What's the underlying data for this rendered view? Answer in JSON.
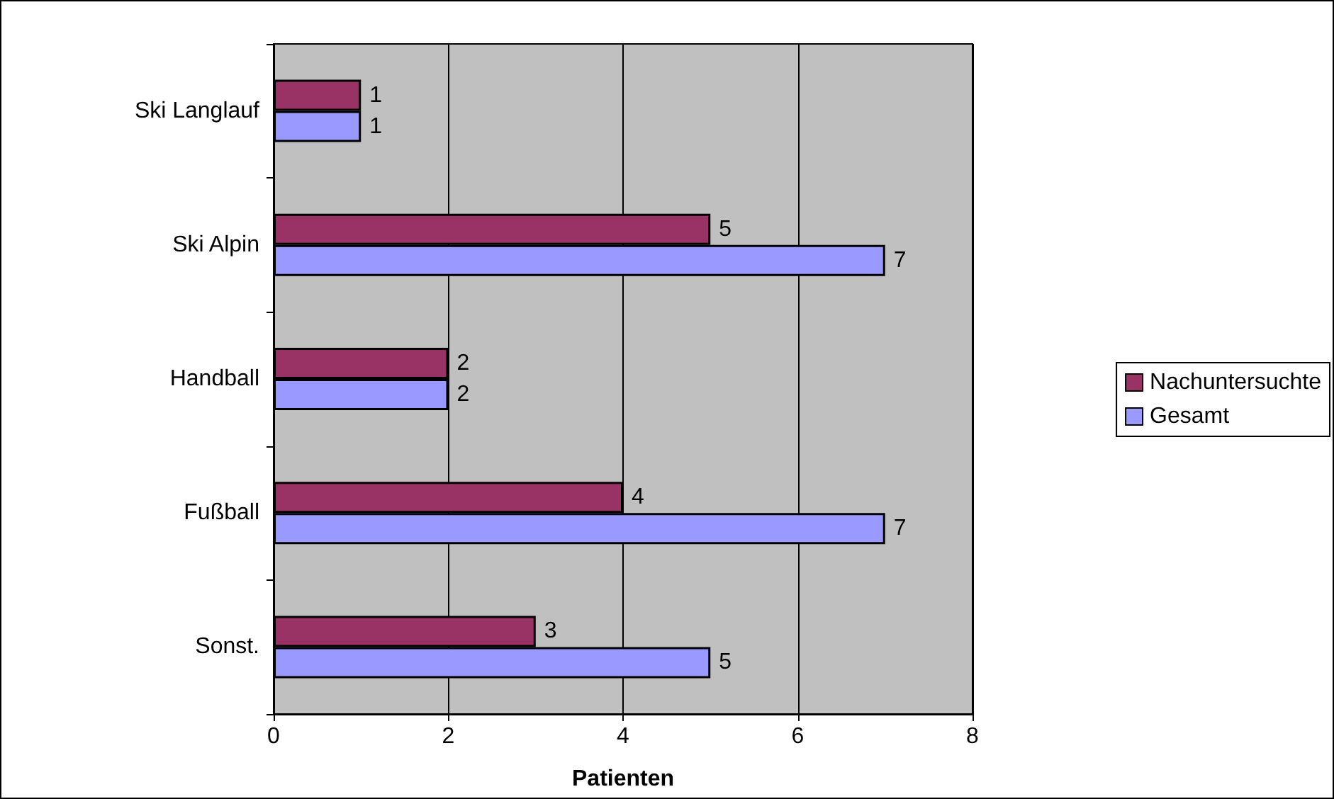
{
  "chart_data": {
    "type": "bar",
    "orientation": "horizontal",
    "xlabel": "Patienten",
    "categories": [
      "Ski Langlauf",
      "Ski Alpin",
      "Handball",
      "Fußball",
      "Sonst."
    ],
    "series": [
      {
        "name": "Nachuntersuchte",
        "color": "#993366",
        "values": [
          1,
          5,
          2,
          4,
          3
        ]
      },
      {
        "name": "Gesamt",
        "color": "#9999ff",
        "values": [
          1,
          7,
          2,
          7,
          5
        ]
      }
    ],
    "xlim": [
      0,
      8
    ],
    "xticks": [
      0,
      2,
      4,
      6,
      8
    ],
    "grid": "x",
    "legend": "right",
    "data_labels": true
  }
}
